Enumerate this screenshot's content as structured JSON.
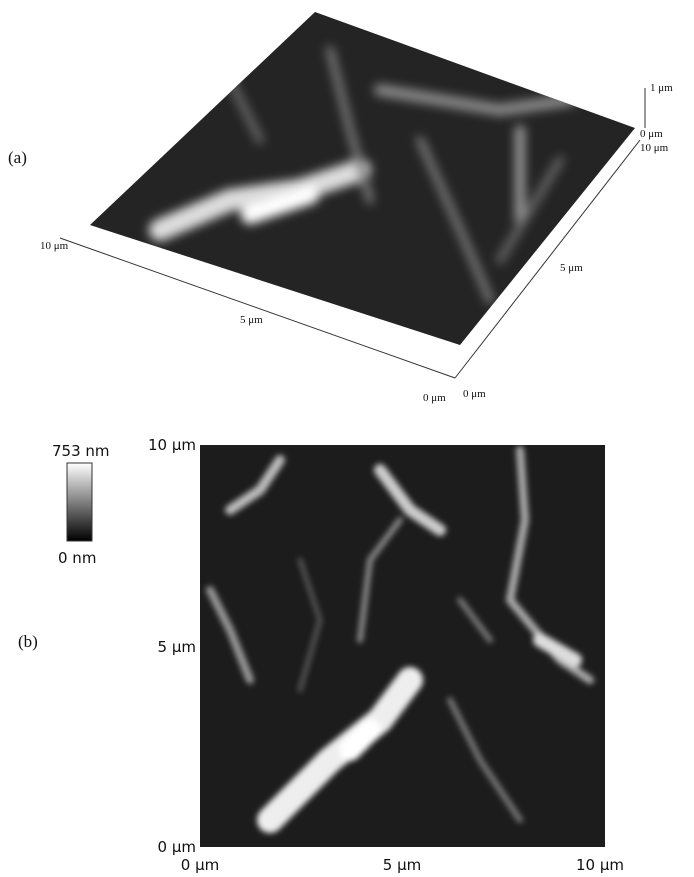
{
  "panel_a": {
    "label": "(a)",
    "z_axis": {
      "top": "1 μm",
      "bottom": "0 μm"
    },
    "left_axis": {
      "start": "10 μm",
      "middle": "5 μm",
      "end": "0 μm"
    },
    "right_axis": {
      "start": "0 μm",
      "middle": "5 μm",
      "end": "10 μm"
    }
  },
  "panel_b": {
    "label": "(b)",
    "colorbar": {
      "max": "753 nm",
      "min": "0 nm"
    },
    "y_ticks": [
      "10 μm",
      "5 μm",
      "0 μm"
    ],
    "x_ticks": [
      "0 μm",
      "5 μm",
      "10 μm"
    ]
  }
}
